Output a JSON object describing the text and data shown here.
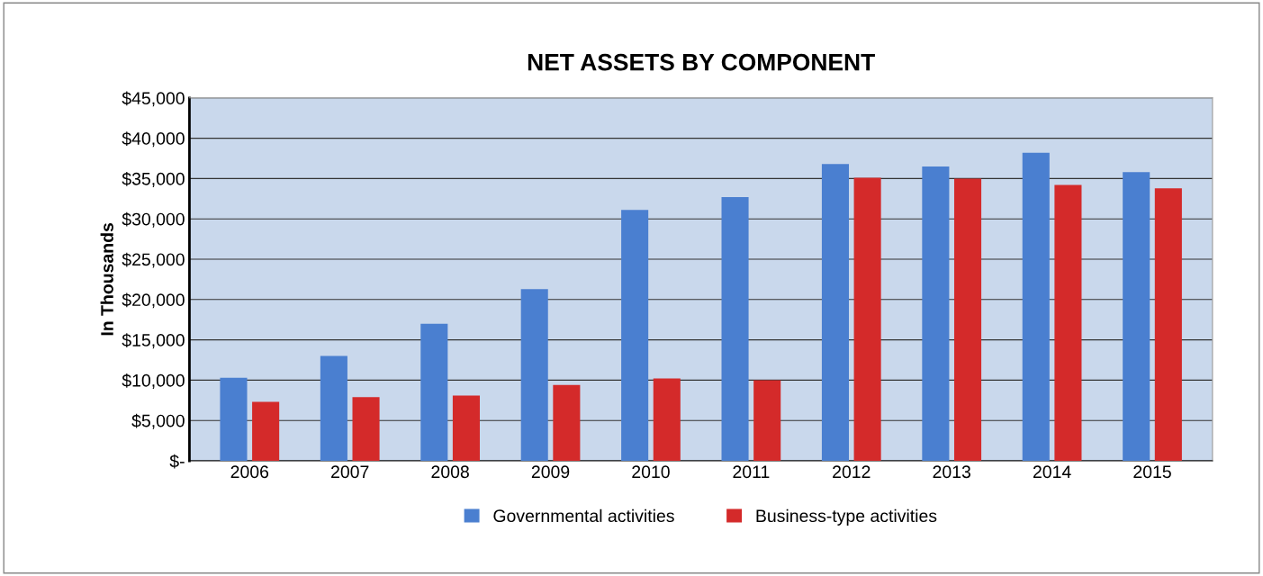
{
  "chart_data": {
    "type": "bar",
    "title": "NET ASSETS BY COMPONENT",
    "ylabel": "In Thousands",
    "categories": [
      "2006",
      "2007",
      "2008",
      "2009",
      "2010",
      "2011",
      "2012",
      "2013",
      "2014",
      "2015"
    ],
    "series": [
      {
        "name": "Governmental activities",
        "color": "#4a7fd0",
        "values": [
          10300,
          13000,
          17000,
          21300,
          31100,
          32700,
          36800,
          36500,
          38200,
          35800
        ]
      },
      {
        "name": "Business-type activities",
        "color": "#d42a2a",
        "values": [
          7300,
          7900,
          8100,
          9400,
          10200,
          10000,
          35100,
          35000,
          34200,
          33800
        ]
      }
    ],
    "ylim": [
      0,
      45000
    ],
    "yticks": [
      {
        "value": 0,
        "label": "$-"
      },
      {
        "value": 5000,
        "label": "$5,000"
      },
      {
        "value": 10000,
        "label": "$10,000"
      },
      {
        "value": 15000,
        "label": "$15,000"
      },
      {
        "value": 20000,
        "label": "$20,000"
      },
      {
        "value": 25000,
        "label": "$25,000"
      },
      {
        "value": 30000,
        "label": "$30,000"
      },
      {
        "value": 35000,
        "label": "$35,000"
      },
      {
        "value": 40000,
        "label": "$40,000"
      },
      {
        "value": 45000,
        "label": "$45,000"
      }
    ],
    "grid": "y",
    "legend": "bottom"
  }
}
